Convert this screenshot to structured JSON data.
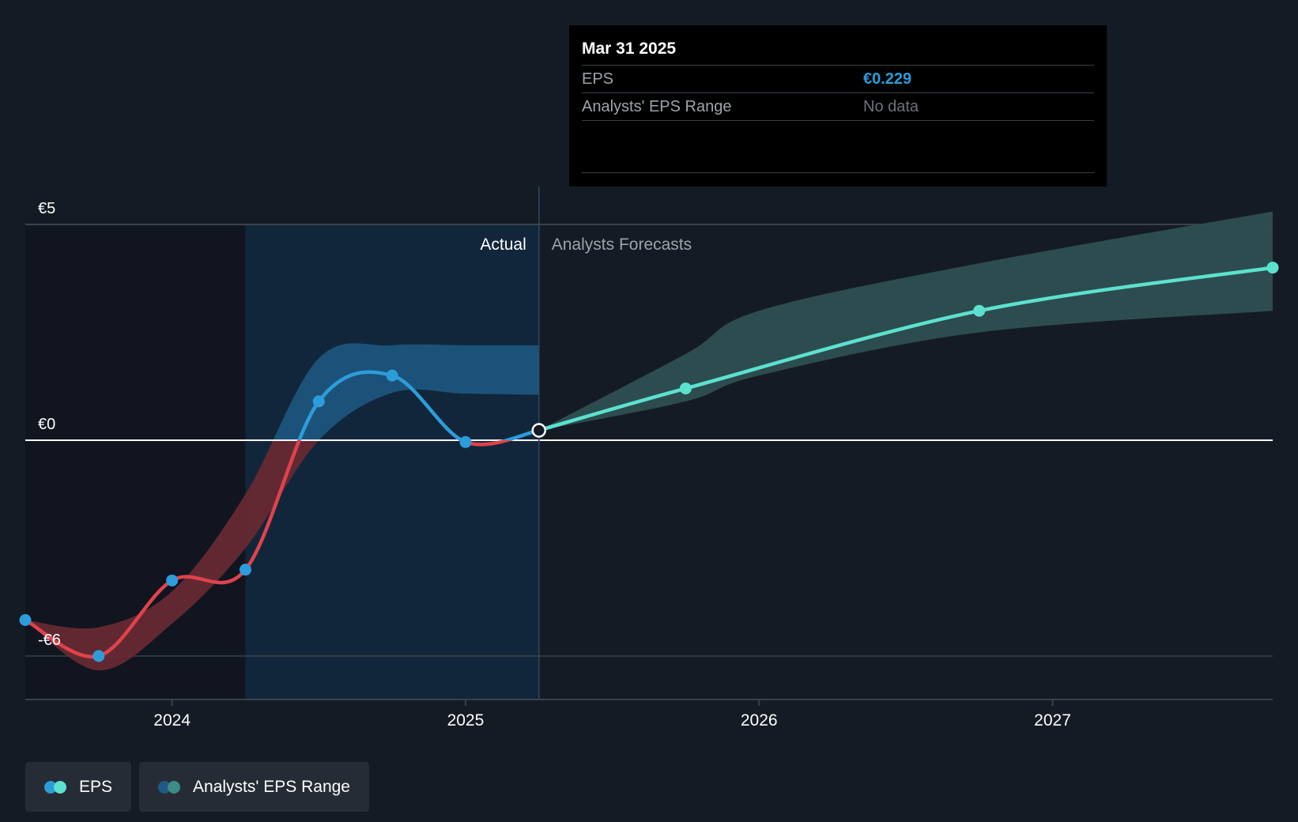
{
  "tooltip": {
    "date": "Mar 31 2025",
    "rows": [
      {
        "label": "EPS",
        "value": "€0.229"
      },
      {
        "label": "Analysts' EPS Range",
        "value": "No data"
      }
    ]
  },
  "legend": [
    {
      "label": "EPS",
      "colors": [
        "#2d9cdb",
        "#5ce1cf"
      ]
    },
    {
      "label": "Analysts' EPS Range",
      "colors": [
        "#1f5a85",
        "#3d8c85"
      ]
    }
  ],
  "colors": {
    "background": "#151b24",
    "past_shade": "#101520",
    "actual_shade": "#12263b",
    "eps_actual": "#2d9cdb",
    "eps_negative": "#e0424b",
    "eps_forecast": "#5ce1cf",
    "range_actual": "#1f5a85",
    "range_negative": "#6b2a33",
    "range_forecast": "#2e4f52",
    "zero_line": "#ffffff",
    "grid": "#3a414b"
  },
  "chart_data": {
    "type": "line",
    "ylim": [
      -6,
      5
    ],
    "ytick_labels": [
      {
        "value": 5,
        "label": "€5"
      },
      {
        "value": 0,
        "label": "€0"
      },
      {
        "value": -6,
        "label": "-€6"
      }
    ],
    "xlim": [
      2023.5,
      2027.75
    ],
    "xtick_labels": [
      {
        "value": 2024,
        "label": "2024"
      },
      {
        "value": 2025,
        "label": "2025"
      },
      {
        "value": 2026,
        "label": "2026"
      },
      {
        "value": 2027,
        "label": "2027"
      }
    ],
    "annotations": {
      "actual": "Actual",
      "forecast": "Analysts Forecasts"
    },
    "shaded_period_start": 2024.25,
    "divider_x": 2025.25,
    "series": [
      {
        "name": "EPS",
        "x": [
          2023.5,
          2023.75,
          2024.0,
          2024.25,
          2024.5,
          2024.75,
          2025.0,
          2025.25
        ],
        "y": [
          -5.0,
          -6.0,
          -3.9,
          -3.6,
          0.9,
          1.5,
          -0.05,
          0.229
        ]
      },
      {
        "name": "EPS Forecast",
        "x": [
          2025.25,
          2025.75,
          2026.75,
          2027.75
        ],
        "y": [
          0.229,
          1.2,
          3.0,
          4.0
        ]
      }
    ],
    "range_actual": {
      "x": [
        2023.5,
        2023.75,
        2024.0,
        2024.25,
        2024.5,
        2024.75,
        2025.0,
        2025.25
      ],
      "low": [
        -5.0,
        -6.4,
        -5.1,
        -3.0,
        0.0,
        1.1,
        1.08,
        1.05
      ],
      "high": [
        -5.0,
        -5.2,
        -4.2,
        -1.5,
        1.9,
        2.2,
        2.2,
        2.2
      ]
    },
    "range_forecast": {
      "x": [
        2025.25,
        2025.75,
        2026.0,
        2026.75,
        2027.75
      ],
      "low": [
        0.229,
        0.9,
        1.5,
        2.5,
        3.0
      ],
      "high": [
        0.229,
        2.0,
        3.0,
        4.1,
        5.3
      ]
    }
  }
}
